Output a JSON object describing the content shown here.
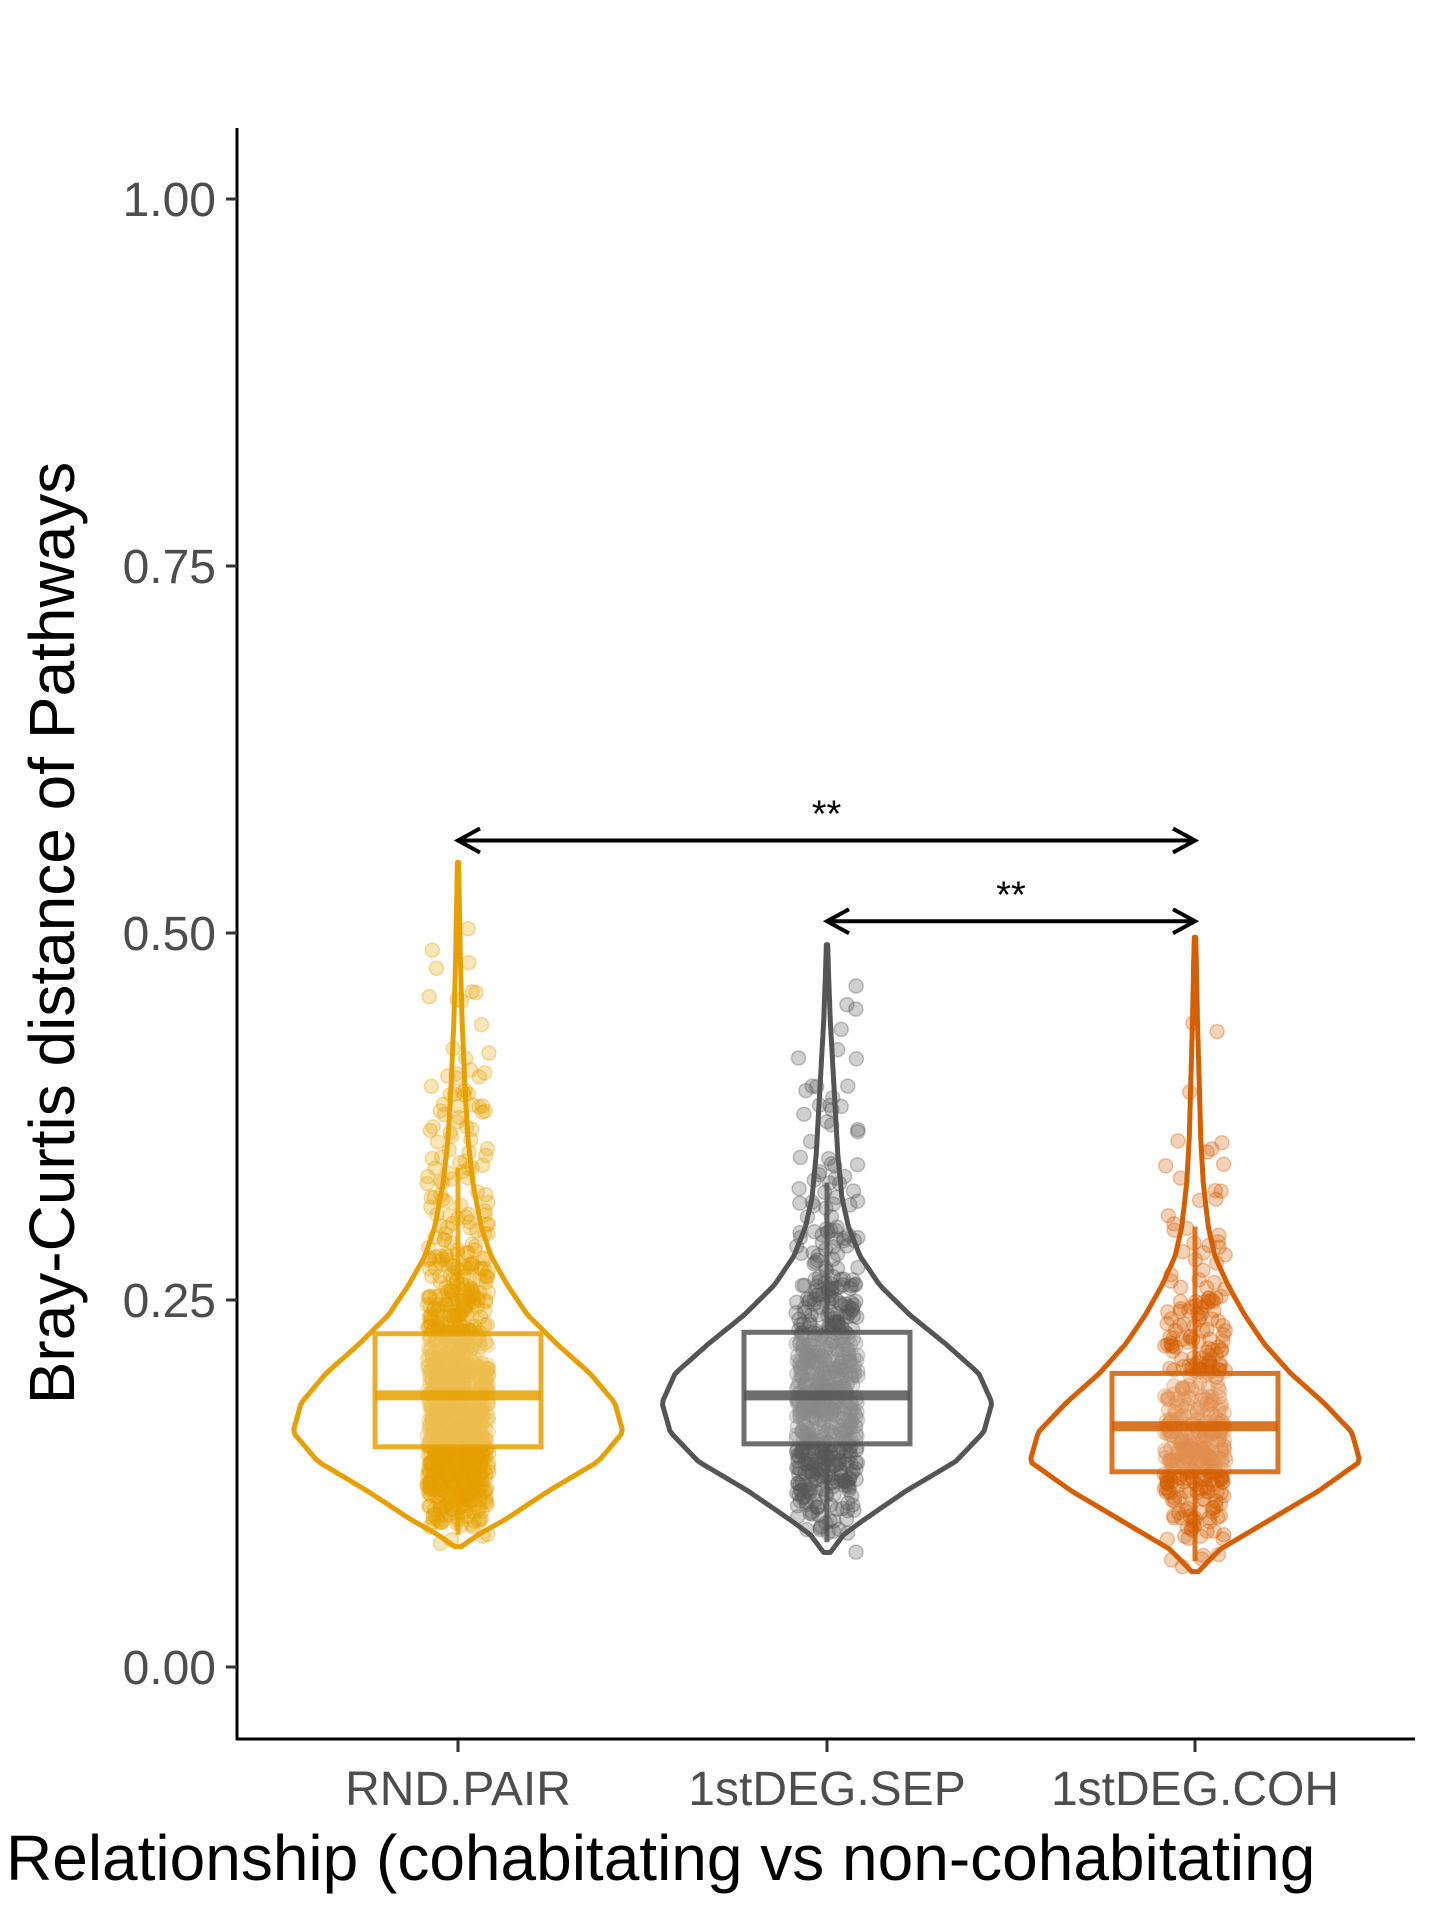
{
  "chart_data": {
    "type": "violin",
    "title": "",
    "xlabel": "Relationship (cohabitating vs non-cohabitating",
    "ylabel": "Bray-Curtis distance of Pathways",
    "ylim": [
      -0.05,
      1.05
    ],
    "yticks": [
      0.0,
      0.25,
      0.5,
      0.75,
      1.0
    ],
    "ytick_labels": [
      "0.00",
      "0.25",
      "0.50",
      "0.75",
      "1.00"
    ],
    "grid": false,
    "legend": "none",
    "categories": [
      "RND.PAIR",
      "1stDEG.SEP",
      "1stDEG.COH"
    ],
    "groups": [
      {
        "category": "RND.PAIR",
        "color": "#E6A100",
        "box": {
          "lower_whisker": 0.09,
          "q1": 0.15,
          "median": 0.185,
          "q3": 0.227,
          "upper_whisker": 0.34
        },
        "violin_min": 0.082,
        "violin_max": 0.548,
        "density": [
          [
            0.082,
            0.02
          ],
          [
            0.09,
            0.12
          ],
          [
            0.1,
            0.28
          ],
          [
            0.12,
            0.55
          ],
          [
            0.14,
            0.85
          ],
          [
            0.16,
            1.0
          ],
          [
            0.18,
            0.95
          ],
          [
            0.2,
            0.8
          ],
          [
            0.22,
            0.6
          ],
          [
            0.24,
            0.42
          ],
          [
            0.26,
            0.3
          ],
          [
            0.28,
            0.2
          ],
          [
            0.3,
            0.14
          ],
          [
            0.33,
            0.09
          ],
          [
            0.36,
            0.06
          ],
          [
            0.4,
            0.04
          ],
          [
            0.44,
            0.025
          ],
          [
            0.48,
            0.015
          ],
          [
            0.52,
            0.008
          ],
          [
            0.548,
            0.004
          ]
        ],
        "n_points": 1100
      },
      {
        "category": "1stDEG.SEP",
        "color": "#555555",
        "box": {
          "lower_whisker": 0.085,
          "q1": 0.152,
          "median": 0.185,
          "q3": 0.228,
          "upper_whisker": 0.33
        },
        "violin_min": 0.078,
        "violin_max": 0.492,
        "density": [
          [
            0.078,
            0.02
          ],
          [
            0.09,
            0.1
          ],
          [
            0.1,
            0.22
          ],
          [
            0.12,
            0.48
          ],
          [
            0.14,
            0.78
          ],
          [
            0.16,
            0.95
          ],
          [
            0.18,
            1.0
          ],
          [
            0.2,
            0.92
          ],
          [
            0.22,
            0.72
          ],
          [
            0.24,
            0.5
          ],
          [
            0.26,
            0.32
          ],
          [
            0.28,
            0.2
          ],
          [
            0.3,
            0.13
          ],
          [
            0.32,
            0.09
          ],
          [
            0.35,
            0.065
          ],
          [
            0.38,
            0.05
          ],
          [
            0.41,
            0.035
          ],
          [
            0.44,
            0.02
          ],
          [
            0.47,
            0.01
          ],
          [
            0.492,
            0.004
          ]
        ],
        "n_points": 650
      },
      {
        "category": "1stDEG.COH",
        "color": "#D55E00",
        "box": {
          "lower_whisker": 0.072,
          "q1": 0.133,
          "median": 0.164,
          "q3": 0.2,
          "upper_whisker": 0.3
        },
        "violin_min": 0.065,
        "violin_max": 0.497,
        "density": [
          [
            0.065,
            0.02
          ],
          [
            0.08,
            0.15
          ],
          [
            0.1,
            0.45
          ],
          [
            0.12,
            0.75
          ],
          [
            0.14,
            1.0
          ],
          [
            0.16,
            0.95
          ],
          [
            0.18,
            0.78
          ],
          [
            0.2,
            0.58
          ],
          [
            0.22,
            0.42
          ],
          [
            0.24,
            0.3
          ],
          [
            0.26,
            0.2
          ],
          [
            0.28,
            0.12
          ],
          [
            0.3,
            0.08
          ],
          [
            0.33,
            0.05
          ],
          [
            0.36,
            0.035
          ],
          [
            0.4,
            0.025
          ],
          [
            0.44,
            0.015
          ],
          [
            0.48,
            0.008
          ],
          [
            0.497,
            0.004
          ]
        ],
        "n_points": 420
      }
    ],
    "comparisons": [
      {
        "from": "RND.PAIR",
        "to": "1stDEG.COH",
        "label": "**",
        "y": 0.563
      },
      {
        "from": "1stDEG.SEP",
        "to": "1stDEG.COH",
        "label": "**",
        "y": 0.508
      }
    ]
  }
}
